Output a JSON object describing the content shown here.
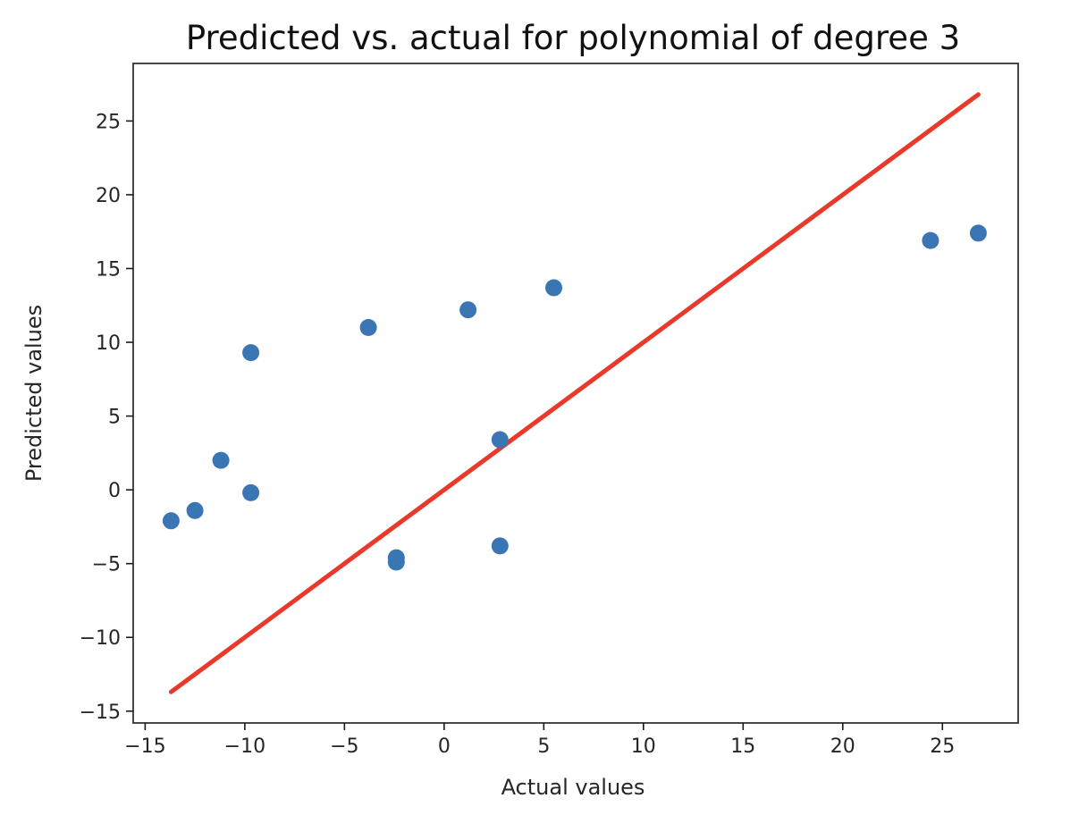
{
  "chart_data": {
    "type": "scatter",
    "title": "Predicted vs. actual for polynomial of degree 3",
    "xlabel": "Actual values",
    "ylabel": "Predicted values",
    "xlim": [
      -15.6,
      28.8
    ],
    "ylim": [
      -15.8,
      28.9
    ],
    "xticks": [
      -15,
      -10,
      -5,
      0,
      5,
      10,
      15,
      20,
      25
    ],
    "yticks": [
      -15,
      -10,
      -5,
      0,
      5,
      10,
      15,
      20,
      25
    ],
    "xtick_labels": [
      "−15",
      "−10",
      "−5",
      "0",
      "5",
      "10",
      "15",
      "20",
      "25"
    ],
    "ytick_labels": [
      "−15",
      "−10",
      "−5",
      "0",
      "5",
      "10",
      "15",
      "20",
      "25"
    ],
    "series": [
      {
        "name": "points",
        "kind": "scatter",
        "color": "#3a76b3",
        "points": [
          {
            "x": -13.7,
            "y": -2.1
          },
          {
            "x": -12.5,
            "y": -1.4
          },
          {
            "x": -11.2,
            "y": 2.0
          },
          {
            "x": -9.7,
            "y": 9.3
          },
          {
            "x": -9.7,
            "y": -0.2
          },
          {
            "x": -3.8,
            "y": 11.0
          },
          {
            "x": -2.4,
            "y": -4.6
          },
          {
            "x": -2.4,
            "y": -4.9
          },
          {
            "x": 1.2,
            "y": 12.2
          },
          {
            "x": 2.8,
            "y": 3.4
          },
          {
            "x": 2.8,
            "y": -3.8
          },
          {
            "x": 5.5,
            "y": 13.7
          },
          {
            "x": 24.4,
            "y": 16.9
          },
          {
            "x": 26.8,
            "y": 17.4
          }
        ]
      },
      {
        "name": "identity line",
        "kind": "line",
        "color": "#e8392b",
        "points": [
          {
            "x": -13.7,
            "y": -13.7
          },
          {
            "x": 26.8,
            "y": 26.8
          }
        ]
      }
    ]
  }
}
